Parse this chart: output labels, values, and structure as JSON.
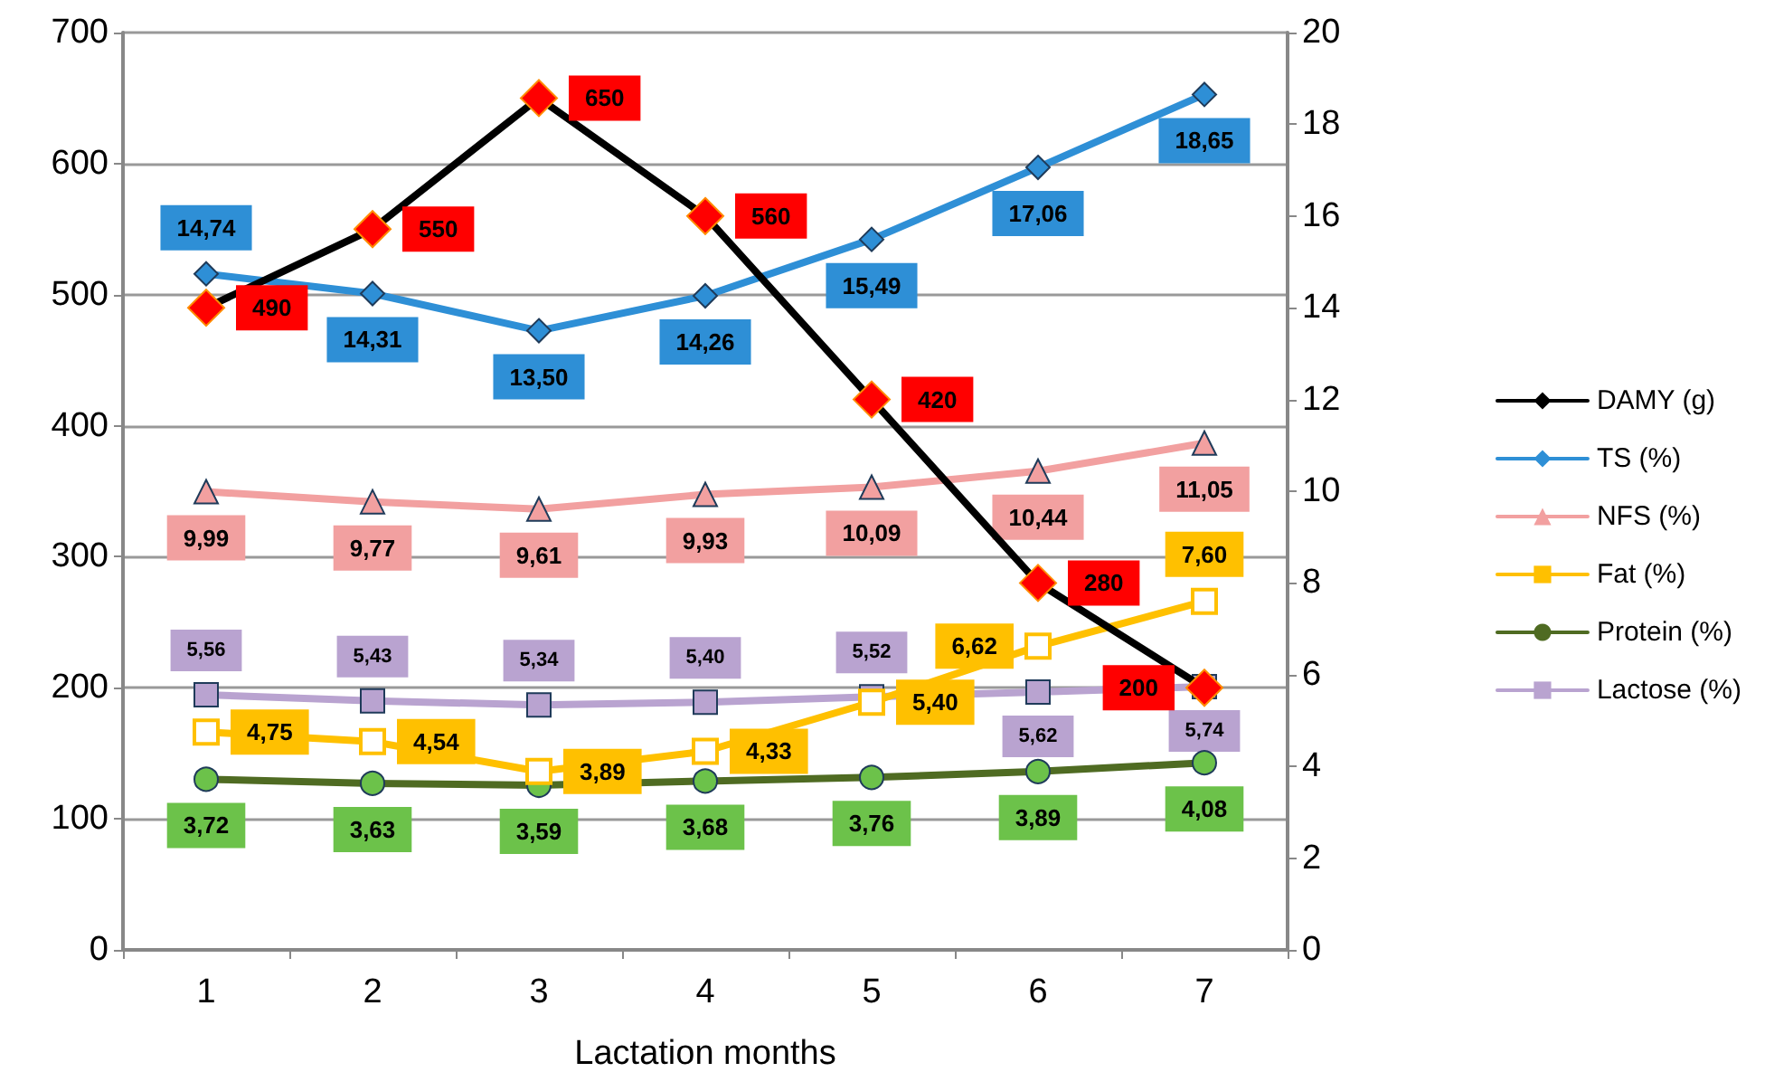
{
  "chart_data": {
    "type": "line",
    "xlabel": "Lactation months",
    "categories": [
      "1",
      "2",
      "3",
      "4",
      "5",
      "6",
      "7"
    ],
    "ylim": [
      0,
      700
    ],
    "yticks": [
      0,
      100,
      200,
      300,
      400,
      500,
      600,
      700
    ],
    "y2lim": [
      0,
      20
    ],
    "y2ticks": [
      0,
      2,
      4,
      6,
      8,
      10,
      12,
      14,
      16,
      18,
      20
    ],
    "grid": "y",
    "legend": "right",
    "line_style": "solid",
    "series": [
      {
        "name": "DAMY (g)",
        "color": "#000000",
        "colors": [
          "#ff0000",
          "#ff0000",
          "#ff0000",
          "#ff0000",
          "#ff0000",
          "#ff0000",
          "#ff0000"
        ],
        "marker": "diamond",
        "values": [
          490,
          550,
          650,
          560,
          420,
          280,
          200
        ],
        "value_labels": [
          "490",
          "550",
          "650",
          "560",
          "420",
          "280",
          "200"
        ]
      },
      {
        "name": "TS (%)",
        "color": "#2e8fd6",
        "axis": "y2",
        "marker": "diamond",
        "values": [
          14.74,
          14.31,
          13.5,
          14.26,
          15.49,
          17.06,
          18.65
        ],
        "value_labels": [
          "14,74",
          "14,31",
          "13,50",
          "14,26",
          "15,49",
          "17,06",
          "18,65"
        ]
      },
      {
        "name": "NFS (%)",
        "color": "#f2a0a0",
        "axis": "y2",
        "marker": "triangle",
        "values": [
          9.99,
          9.77,
          9.61,
          9.93,
          10.09,
          10.44,
          11.05
        ],
        "value_labels": [
          "9,99",
          "9,77",
          "9,61",
          "9,93",
          "10,09",
          "10,44",
          "11,05"
        ]
      },
      {
        "name": "Fat (%)",
        "color": "#ffc000",
        "axis": "y2",
        "marker": "square",
        "values": [
          4.75,
          4.54,
          3.89,
          4.33,
          5.4,
          6.62,
          7.6
        ],
        "value_labels": [
          "4,75",
          "4,54",
          "3,89",
          "4,33",
          "5,40",
          "6,62",
          "7,60"
        ]
      },
      {
        "name": "Protein (%)",
        "color": "#4f6b22",
        "colors": [
          "#6cc24a",
          "#6cc24a",
          "#6cc24a",
          "#6cc24a",
          "#6cc24a",
          "#6cc24a",
          "#6cc24a"
        ],
        "axis": "y2",
        "marker": "circle",
        "values": [
          3.72,
          3.63,
          3.59,
          3.68,
          3.76,
          3.89,
          4.08
        ],
        "value_labels": [
          "3,72",
          "3,63",
          "3,59",
          "3,68",
          "3,76",
          "3,89",
          "4,08"
        ]
      },
      {
        "name": "Lactose (%)",
        "color": "#b9a3d0",
        "axis": "y2",
        "marker": "square",
        "values": [
          5.56,
          5.43,
          5.34,
          5.4,
          5.52,
          5.62,
          5.74
        ],
        "value_labels": [
          "5,56",
          "5,43",
          "5,34",
          "5,40",
          "5,52",
          "5,62",
          "5,74"
        ]
      }
    ]
  }
}
